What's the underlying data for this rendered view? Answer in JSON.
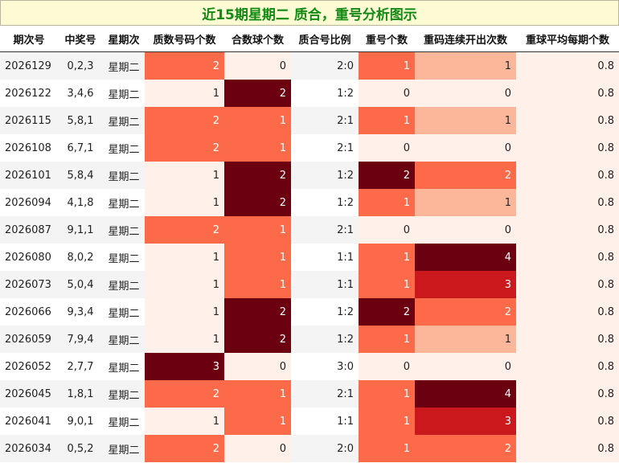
{
  "title": "近15期星期二 质合，重号分析图示",
  "columns": [
    "期次号",
    "中奖号",
    "星期次",
    "质数号码个数",
    "合数球个数",
    "质合号比例",
    "重号个数",
    "重码连续开出次数",
    "重球平均每期个数"
  ],
  "heat_colors": {
    "0": "#fff0ea",
    "1": "#fc6a4a",
    "2": "#6b0010",
    "3": "#6b0010",
    "4": "#6b0010"
  },
  "streak_colors": {
    "0": "#fff0ea",
    "1": "#fcb69a",
    "2": "#fc6a4a",
    "3": "#cb181d",
    "4": "#6b0010"
  },
  "prime_colors": {
    "1": "#fff0ea",
    "2": "#fc6a4a",
    "3": "#6b0010"
  },
  "composite_colors": {
    "0": "#fff0ea",
    "1": "#fc6a4a",
    "2": "#6b0010"
  },
  "repeat_colors": {
    "0": "#fff0ea",
    "1": "#fc6a4a",
    "2": "#6b0010"
  },
  "avg_color": "#fff0ea",
  "rows": [
    {
      "issue": "2026129",
      "numbers": "0,2,3",
      "weekday": "星期二",
      "primes": "2",
      "composites": "0",
      "ratio": "2:0",
      "repeats": "1",
      "streak": "1",
      "avg": "0.8"
    },
    {
      "issue": "2026122",
      "numbers": "3,4,6",
      "weekday": "星期二",
      "primes": "1",
      "composites": "2",
      "ratio": "1:2",
      "repeats": "0",
      "streak": "0",
      "avg": "0.8"
    },
    {
      "issue": "2026115",
      "numbers": "5,8,1",
      "weekday": "星期二",
      "primes": "2",
      "composites": "1",
      "ratio": "2:1",
      "repeats": "1",
      "streak": "1",
      "avg": "0.8"
    },
    {
      "issue": "2026108",
      "numbers": "6,7,1",
      "weekday": "星期二",
      "primes": "2",
      "composites": "1",
      "ratio": "2:1",
      "repeats": "0",
      "streak": "0",
      "avg": "0.8"
    },
    {
      "issue": "2026101",
      "numbers": "5,8,4",
      "weekday": "星期二",
      "primes": "1",
      "composites": "2",
      "ratio": "1:2",
      "repeats": "2",
      "streak": "2",
      "avg": "0.8"
    },
    {
      "issue": "2026094",
      "numbers": "4,1,8",
      "weekday": "星期二",
      "primes": "1",
      "composites": "2",
      "ratio": "1:2",
      "repeats": "1",
      "streak": "1",
      "avg": "0.8"
    },
    {
      "issue": "2026087",
      "numbers": "9,1,1",
      "weekday": "星期二",
      "primes": "2",
      "composites": "1",
      "ratio": "2:1",
      "repeats": "0",
      "streak": "0",
      "avg": "0.8"
    },
    {
      "issue": "2026080",
      "numbers": "8,0,2",
      "weekday": "星期二",
      "primes": "1",
      "composites": "1",
      "ratio": "1:1",
      "repeats": "1",
      "streak": "4",
      "avg": "0.8"
    },
    {
      "issue": "2026073",
      "numbers": "5,0,4",
      "weekday": "星期二",
      "primes": "1",
      "composites": "1",
      "ratio": "1:1",
      "repeats": "1",
      "streak": "3",
      "avg": "0.8"
    },
    {
      "issue": "2026066",
      "numbers": "9,3,4",
      "weekday": "星期二",
      "primes": "1",
      "composites": "2",
      "ratio": "1:2",
      "repeats": "2",
      "streak": "2",
      "avg": "0.8"
    },
    {
      "issue": "2026059",
      "numbers": "7,9,4",
      "weekday": "星期二",
      "primes": "1",
      "composites": "2",
      "ratio": "1:2",
      "repeats": "1",
      "streak": "1",
      "avg": "0.8"
    },
    {
      "issue": "2026052",
      "numbers": "2,7,7",
      "weekday": "星期二",
      "primes": "3",
      "composites": "0",
      "ratio": "3:0",
      "repeats": "0",
      "streak": "0",
      "avg": "0.8"
    },
    {
      "issue": "2026045",
      "numbers": "1,8,1",
      "weekday": "星期二",
      "primes": "2",
      "composites": "1",
      "ratio": "2:1",
      "repeats": "1",
      "streak": "4",
      "avg": "0.8"
    },
    {
      "issue": "2026041",
      "numbers": "9,0,1",
      "weekday": "星期二",
      "primes": "1",
      "composites": "1",
      "ratio": "1:1",
      "repeats": "1",
      "streak": "3",
      "avg": "0.8"
    },
    {
      "issue": "2026034",
      "numbers": "0,5,2",
      "weekday": "星期二",
      "primes": "2",
      "composites": "0",
      "ratio": "2:0",
      "repeats": "1",
      "streak": "2",
      "avg": "0.8"
    }
  ]
}
